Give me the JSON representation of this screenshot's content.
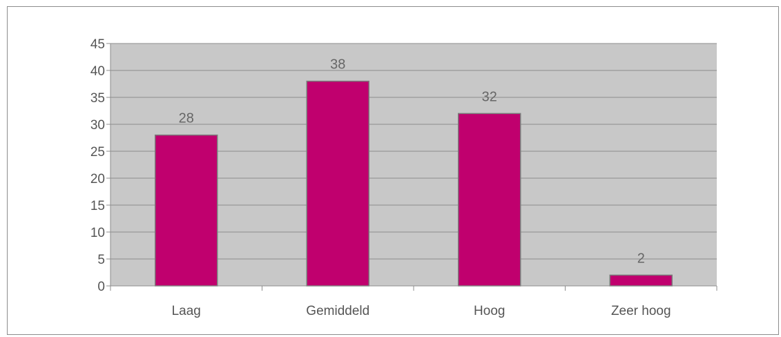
{
  "chart_data": {
    "type": "bar",
    "categories": [
      "Laag",
      "Gemiddeld",
      "Hoog",
      "Zeer hoog"
    ],
    "values": [
      28,
      38,
      32,
      2
    ],
    "data_labels": [
      "28",
      "38",
      "32",
      "2"
    ],
    "title": "",
    "xlabel": "",
    "ylabel": "",
    "ylim": [
      0,
      45
    ],
    "yticks": [
      0,
      5,
      10,
      15,
      20,
      25,
      30,
      35,
      40,
      45
    ],
    "grid": true,
    "legend": "none",
    "colors": {
      "bar_fill": "#c0006e",
      "bar_stroke": "#7a7a7a",
      "plot_background": "#c8c8c8",
      "grid": "#8c8c8c",
      "axis": "#8c8c8c",
      "text": "#555555"
    }
  }
}
